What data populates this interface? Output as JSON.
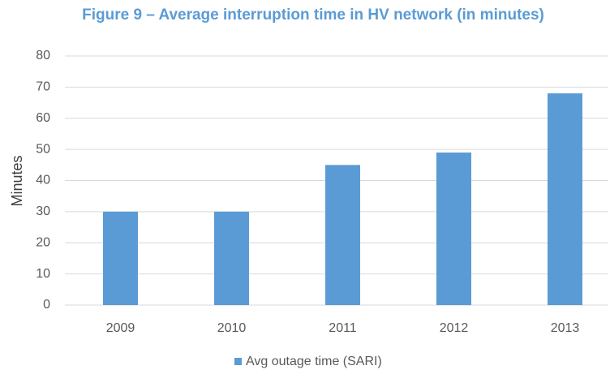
{
  "chart_data": {
    "type": "bar",
    "title": "Figure 9 – Average interruption time in HV network (in minutes)",
    "y_label": "Minutes",
    "categories": [
      "2009",
      "2010",
      "2011",
      "2012",
      "2013"
    ],
    "series": [
      {
        "name": "Avg outage time (SARI)",
        "color": "#5b9bd5",
        "values": [
          30,
          30,
          45,
          49,
          68
        ]
      }
    ],
    "ylim": [
      0,
      80
    ],
    "yticks": [
      0,
      10,
      20,
      30,
      40,
      50,
      60,
      70,
      80
    ],
    "grid": true,
    "legend": "bottom"
  }
}
